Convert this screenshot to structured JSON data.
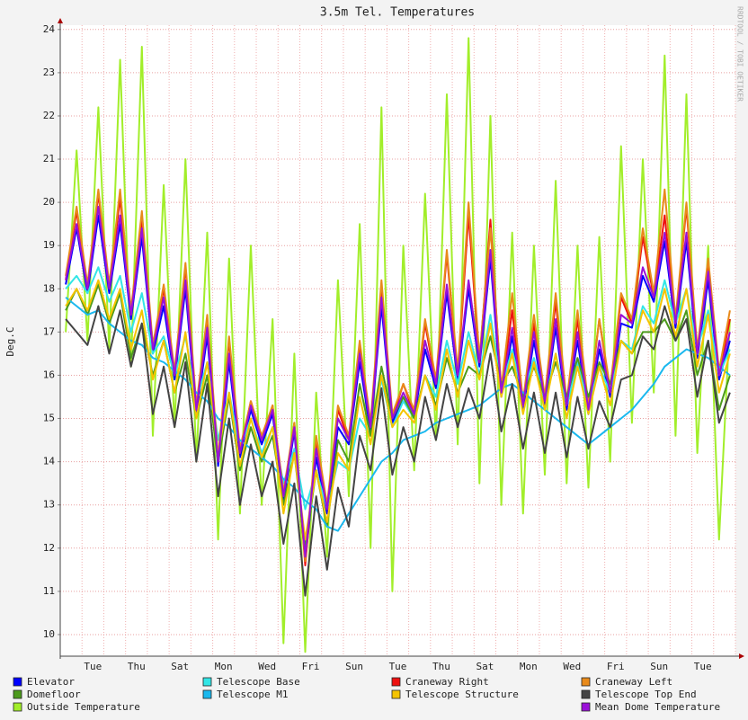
{
  "chart_data": {
    "type": "line",
    "title": "3.5m Tel. Temperatures",
    "y_label": "Deg.C",
    "watermark": "RRDTOOL / TOBI OETIKER",
    "categories": [
      null,
      null,
      null,
      "Tue",
      null,
      null,
      null,
      "Thu",
      null,
      null,
      null,
      "Sat",
      null,
      null,
      null,
      "Mon",
      null,
      null,
      null,
      "Wed",
      null,
      null,
      null,
      "Fri",
      null,
      null,
      null,
      "Sun",
      null,
      null,
      null,
      "Tue",
      null,
      null,
      null,
      "Thu",
      null,
      null,
      null,
      "Sat",
      null,
      null,
      null,
      "Mon",
      null,
      null,
      null,
      "Wed",
      null,
      null,
      null,
      "Fri",
      null,
      null,
      null,
      "Sun",
      null,
      null,
      null,
      "Tue",
      null,
      null
    ],
    "ylim": [
      9.5,
      24.1
    ],
    "yticks": [
      10,
      11,
      12,
      13,
      14,
      15,
      16,
      17,
      18,
      19,
      20,
      21,
      22,
      23,
      24
    ],
    "grid": true,
    "series": [
      {
        "name": "Elevator",
        "color": "#0000ff",
        "values": [
          18.1,
          19.4,
          17.9,
          19.7,
          17.9,
          19.5,
          17.3,
          19.2,
          16.5,
          17.6,
          15.9,
          18.0,
          15.1,
          16.9,
          13.9,
          16.3,
          14.1,
          15.2,
          14.4,
          15.1,
          13.1,
          14.7,
          11.7,
          14.1,
          12.8,
          14.8,
          14.4,
          16.3,
          14.7,
          17.6,
          14.9,
          15.5,
          15.0,
          16.6,
          15.7,
          17.9,
          15.9,
          18.0,
          16.2,
          18.7,
          15.5,
          16.9,
          15.2,
          16.8,
          15.3,
          17.1,
          15.2,
          16.8,
          15.1,
          16.6,
          15.5,
          17.2,
          17.1,
          18.3,
          17.7,
          19.1,
          17.1,
          19.1,
          16.4,
          18.2,
          15.9,
          16.8
        ]
      },
      {
        "name": "Telescope Base",
        "color": "#33e6e6",
        "values": [
          18.0,
          18.3,
          17.9,
          18.5,
          17.7,
          18.3,
          17.0,
          17.9,
          16.5,
          16.9,
          16.0,
          16.9,
          15.4,
          16.3,
          14.5,
          15.6,
          14.3,
          15.0,
          14.2,
          14.8,
          13.5,
          14.3,
          12.9,
          13.8,
          12.9,
          14.0,
          13.8,
          15.0,
          14.6,
          15.9,
          14.8,
          15.4,
          15.0,
          16.0,
          15.5,
          16.8,
          15.8,
          17.0,
          16.0,
          17.4,
          15.7,
          16.6,
          15.5,
          16.4,
          15.4,
          16.5,
          15.3,
          16.3,
          15.3,
          16.2,
          15.6,
          16.8,
          16.6,
          17.6,
          17.2,
          18.2,
          17.2,
          18.0,
          16.6,
          17.5,
          16.0,
          16.6
        ]
      },
      {
        "name": "Craneway Right",
        "color": "#ee1111",
        "values": [
          18.2,
          19.8,
          18.0,
          20.2,
          18.0,
          20.1,
          17.4,
          19.6,
          16.6,
          18.0,
          16.0,
          18.5,
          15.2,
          17.3,
          14.0,
          16.8,
          14.2,
          15.4,
          14.5,
          15.3,
          13.2,
          14.9,
          11.6,
          14.5,
          12.9,
          15.2,
          14.5,
          16.7,
          14.8,
          18.0,
          15.0,
          15.8,
          15.1,
          17.2,
          15.8,
          18.8,
          16.0,
          19.7,
          16.3,
          19.6,
          15.6,
          17.5,
          15.3,
          17.2,
          15.4,
          17.7,
          15.3,
          17.3,
          15.2,
          17.3,
          15.6,
          17.8,
          17.2,
          19.2,
          17.8,
          19.7,
          17.2,
          19.9,
          16.5,
          18.6,
          16.0,
          17.3
        ]
      },
      {
        "name": "Craneway Left",
        "color": "#e88a1a",
        "values": [
          18.3,
          19.9,
          18.1,
          20.3,
          18.1,
          20.3,
          17.5,
          19.8,
          16.7,
          18.1,
          16.1,
          18.6,
          15.3,
          17.4,
          14.1,
          16.9,
          14.3,
          15.4,
          14.6,
          15.3,
          13.3,
          14.9,
          11.7,
          14.6,
          13.0,
          15.3,
          14.6,
          16.8,
          14.9,
          18.2,
          15.1,
          15.8,
          15.2,
          17.3,
          15.9,
          18.9,
          16.1,
          20.0,
          16.4,
          19.4,
          15.7,
          17.9,
          15.4,
          17.4,
          15.5,
          17.9,
          15.4,
          17.5,
          15.3,
          17.3,
          15.7,
          17.9,
          17.3,
          19.4,
          17.9,
          20.3,
          17.3,
          20.0,
          16.6,
          18.7,
          16.1,
          17.5
        ]
      },
      {
        "name": "Domefloor",
        "color": "#4c9a1c",
        "values": [
          17.5,
          18.0,
          17.4,
          18.1,
          17.2,
          17.9,
          16.4,
          17.2,
          16.0,
          16.8,
          15.6,
          16.5,
          15.0,
          16.0,
          14.0,
          15.5,
          13.8,
          14.8,
          14.0,
          14.6,
          13.0,
          14.2,
          12.0,
          13.8,
          12.5,
          14.5,
          14.0,
          15.8,
          14.6,
          16.2,
          15.0,
          15.5,
          15.0,
          16.0,
          15.3,
          16.4,
          15.6,
          16.2,
          16.0,
          16.9,
          15.8,
          16.2,
          15.5,
          16.2,
          15.5,
          16.3,
          15.5,
          16.4,
          15.5,
          16.3,
          15.8,
          16.8,
          16.5,
          17.0,
          17.0,
          17.3,
          16.8,
          17.5,
          16.0,
          16.8,
          15.2,
          16.0
        ]
      },
      {
        "name": "Telescope M1",
        "color": "#1ab8ee",
        "values": [
          17.8,
          17.6,
          17.4,
          17.5,
          17.2,
          17.0,
          16.8,
          16.7,
          16.4,
          16.3,
          16.1,
          15.9,
          15.6,
          15.4,
          15.0,
          14.8,
          14.5,
          14.3,
          14.1,
          13.9,
          13.6,
          13.4,
          13.1,
          12.9,
          12.5,
          12.4,
          12.8,
          13.2,
          13.6,
          14.0,
          14.2,
          14.5,
          14.6,
          14.7,
          14.9,
          15.0,
          15.1,
          15.2,
          15.3,
          15.5,
          15.7,
          15.8,
          15.6,
          15.4,
          15.2,
          15.0,
          14.8,
          14.6,
          14.4,
          14.6,
          14.8,
          15.0,
          15.2,
          15.5,
          15.8,
          16.2,
          16.4,
          16.6,
          16.5,
          16.4,
          16.2,
          16.0
        ]
      },
      {
        "name": "Telescope Structure",
        "color": "#f5c400",
        "values": [
          17.6,
          18.0,
          17.5,
          18.2,
          17.3,
          18.0,
          16.6,
          17.5,
          15.9,
          16.8,
          15.6,
          17.0,
          15.0,
          16.3,
          14.2,
          15.6,
          13.9,
          15.0,
          14.1,
          14.8,
          12.8,
          14.2,
          12.2,
          13.8,
          12.6,
          14.2,
          13.8,
          15.5,
          14.4,
          16.0,
          14.8,
          15.2,
          14.9,
          16.0,
          15.2,
          16.6,
          15.5,
          16.8,
          15.9,
          17.2,
          15.5,
          16.5,
          15.1,
          16.3,
          15.2,
          16.5,
          15.0,
          16.2,
          15.1,
          16.2,
          15.3,
          16.8,
          16.5,
          17.5,
          17.0,
          18.0,
          16.9,
          18.0,
          16.2,
          17.4,
          15.6,
          16.5
        ]
      },
      {
        "name": "Telescope Top End",
        "color": "#444444",
        "values": [
          17.3,
          17.0,
          16.7,
          17.6,
          16.5,
          17.5,
          16.2,
          17.2,
          15.1,
          16.2,
          14.8,
          16.3,
          14.0,
          15.8,
          13.2,
          15.0,
          13.0,
          14.4,
          13.2,
          14.0,
          12.1,
          13.5,
          10.9,
          13.2,
          11.5,
          13.4,
          12.5,
          14.6,
          13.8,
          15.7,
          13.7,
          14.8,
          14.0,
          15.5,
          14.5,
          15.8,
          14.8,
          15.7,
          15.0,
          16.5,
          14.7,
          15.8,
          14.3,
          15.6,
          14.2,
          15.6,
          14.1,
          15.5,
          14.3,
          15.4,
          14.8,
          15.9,
          16.0,
          16.9,
          16.6,
          17.6,
          16.8,
          17.3,
          15.5,
          16.8,
          14.9,
          15.6
        ]
      },
      {
        "name": "Outside Temperature",
        "color": "#a2ee2a",
        "values": [
          17.0,
          21.2,
          16.8,
          22.2,
          16.6,
          23.3,
          16.2,
          23.6,
          14.6,
          20.4,
          14.8,
          21.0,
          14.0,
          19.3,
          12.2,
          18.7,
          12.8,
          19.0,
          13.0,
          17.3,
          9.8,
          16.5,
          9.6,
          15.6,
          11.8,
          18.2,
          13.2,
          19.5,
          12.0,
          22.2,
          11.0,
          19.0,
          13.8,
          20.2,
          14.5,
          22.5,
          14.4,
          23.8,
          13.5,
          22.0,
          13.0,
          19.3,
          12.8,
          19.0,
          13.7,
          20.5,
          13.5,
          19.0,
          13.4,
          19.2,
          14.0,
          21.3,
          14.9,
          21.0,
          15.6,
          23.4,
          14.6,
          22.5,
          14.2,
          19.0,
          12.2,
          17.3
        ]
      },
      {
        "name": "Mean Dome Temperature",
        "color": "#9a10d8",
        "values": [
          18.2,
          19.5,
          18.0,
          19.9,
          18.0,
          19.7,
          17.4,
          19.4,
          16.6,
          17.8,
          16.0,
          18.2,
          15.2,
          17.1,
          14.0,
          16.5,
          14.2,
          15.3,
          14.5,
          15.2,
          13.2,
          14.8,
          11.8,
          14.3,
          12.9,
          15.0,
          14.5,
          16.5,
          14.8,
          17.8,
          15.0,
          15.6,
          15.1,
          16.8,
          15.8,
          18.1,
          16.0,
          18.2,
          16.3,
          18.9,
          15.6,
          17.1,
          15.3,
          17.0,
          15.4,
          17.3,
          15.3,
          17.0,
          15.2,
          16.8,
          15.6,
          17.4,
          17.2,
          18.5,
          17.8,
          19.3,
          17.2,
          19.3,
          16.5,
          18.4,
          16.0,
          17.0
        ]
      }
    ]
  }
}
